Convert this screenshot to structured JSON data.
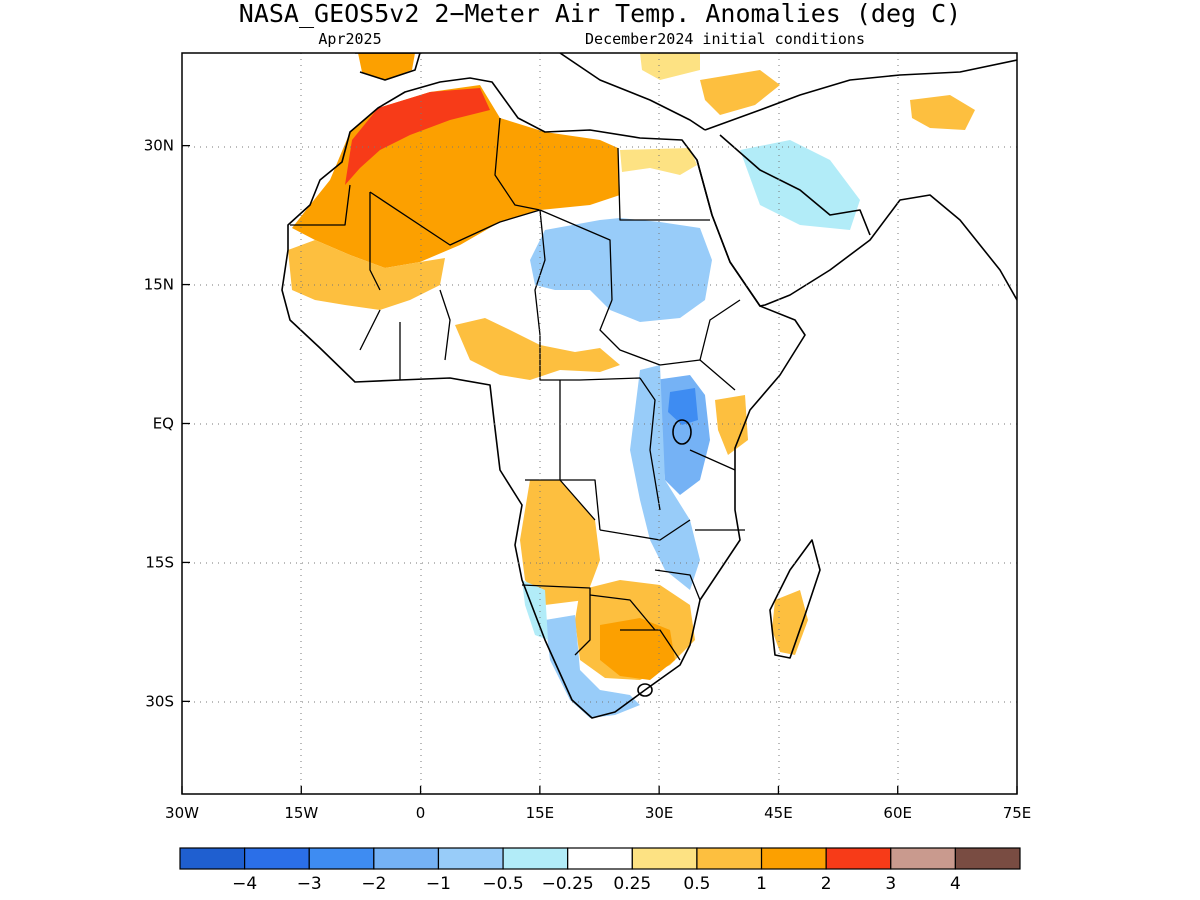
{
  "title": "NASA_GEOS5v2 2−Meter Air Temp. Anomalies (deg C)",
  "subtitle_left": "Apr2025",
  "subtitle_right": "December2024 initial conditions",
  "map": {
    "lon_range": [
      -30,
      75
    ],
    "lat_range": [
      -40,
      40
    ],
    "grid_lines": "dotted",
    "lat_ticks": [
      {
        "value": 30,
        "label": "30N"
      },
      {
        "value": 15,
        "label": "15N"
      },
      {
        "value": 0,
        "label": "EQ"
      },
      {
        "value": -15,
        "label": "15S"
      },
      {
        "value": -30,
        "label": "30S"
      }
    ],
    "lon_ticks": [
      {
        "value": -30,
        "label": "30W"
      },
      {
        "value": -15,
        "label": "15W"
      },
      {
        "value": 0,
        "label": "0"
      },
      {
        "value": 15,
        "label": "15E"
      },
      {
        "value": 30,
        "label": "30E"
      },
      {
        "value": 45,
        "label": "45E"
      },
      {
        "value": 60,
        "label": "60E"
      },
      {
        "value": 75,
        "label": "75E"
      }
    ],
    "anomaly_regions": [
      {
        "region": "Morocco / NW Algeria",
        "level": 3
      },
      {
        "region": "Sahara (Mauritania, Algeria, Libya)",
        "level": 2
      },
      {
        "region": "Western Sahel",
        "level": 1
      },
      {
        "region": "Chad / Sudan",
        "level": -1
      },
      {
        "region": "Egypt / Arabia",
        "level": -0.5
      },
      {
        "region": "Lake Victoria / East Africa",
        "level": -2
      },
      {
        "region": "Angola / Namibia",
        "level": 1
      },
      {
        "region": "Botswana / Zimbabwe",
        "level": 2
      },
      {
        "region": "South Africa (west & south)",
        "level": -1
      },
      {
        "region": "Madagascar",
        "level": 1
      }
    ]
  },
  "colorbar": {
    "colors": [
      "#1f5fd0",
      "#2b6fe8",
      "#3e8cf2",
      "#75b2f5",
      "#98ccf9",
      "#b2ecf8",
      "#ffffff",
      "#fde283",
      "#fdbf3f",
      "#fca000",
      "#f73b18",
      "#c99a8e",
      "#794c42"
    ],
    "labels": [
      "−4",
      "−3",
      "−2",
      "−1",
      "−0.5",
      "−0.25",
      "0.25",
      "0.5",
      "1",
      "2",
      "3",
      "4"
    ]
  }
}
